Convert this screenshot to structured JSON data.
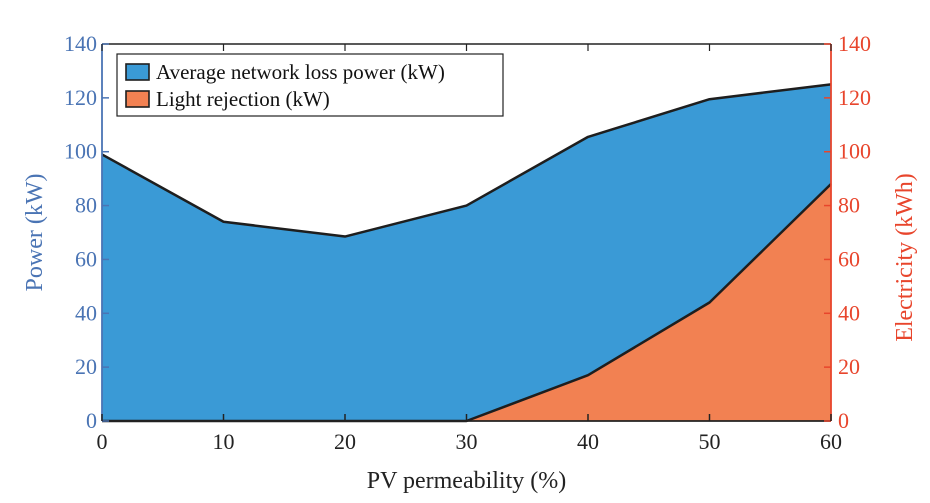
{
  "chart_data": {
    "type": "area",
    "x": [
      0,
      10,
      20,
      30,
      40,
      50,
      60
    ],
    "xlabel": "PV permeability (%)",
    "xlim": [
      0,
      60
    ],
    "x_ticks": [
      "0",
      "10",
      "20",
      "30",
      "40",
      "50",
      "60"
    ],
    "ylabel_left": "Power (kW)",
    "ylabel_right": "Electricity (kWh)",
    "ylim_left": [
      0,
      140
    ],
    "ylim_right": [
      0,
      140
    ],
    "y_ticks_left": [
      "0",
      "20",
      "40",
      "60",
      "80",
      "100",
      "120",
      "140"
    ],
    "y_ticks_right": [
      "0",
      "20",
      "40",
      "60",
      "80",
      "100",
      "120",
      "140"
    ],
    "series": [
      {
        "name": "Average network loss power (kW)",
        "axis": "left",
        "color": "#3a9ad6",
        "values": [
          99,
          74,
          68.5,
          80,
          105.5,
          119.5,
          125
        ]
      },
      {
        "name": "Light rejection (kW)",
        "axis": "right",
        "color": "#f28152",
        "values": [
          0,
          0,
          0,
          0,
          17,
          44,
          88
        ]
      }
    ],
    "legend_position": "top-left",
    "left_axis_color": "#4a74b4",
    "right_axis_color": "#e8452c"
  }
}
